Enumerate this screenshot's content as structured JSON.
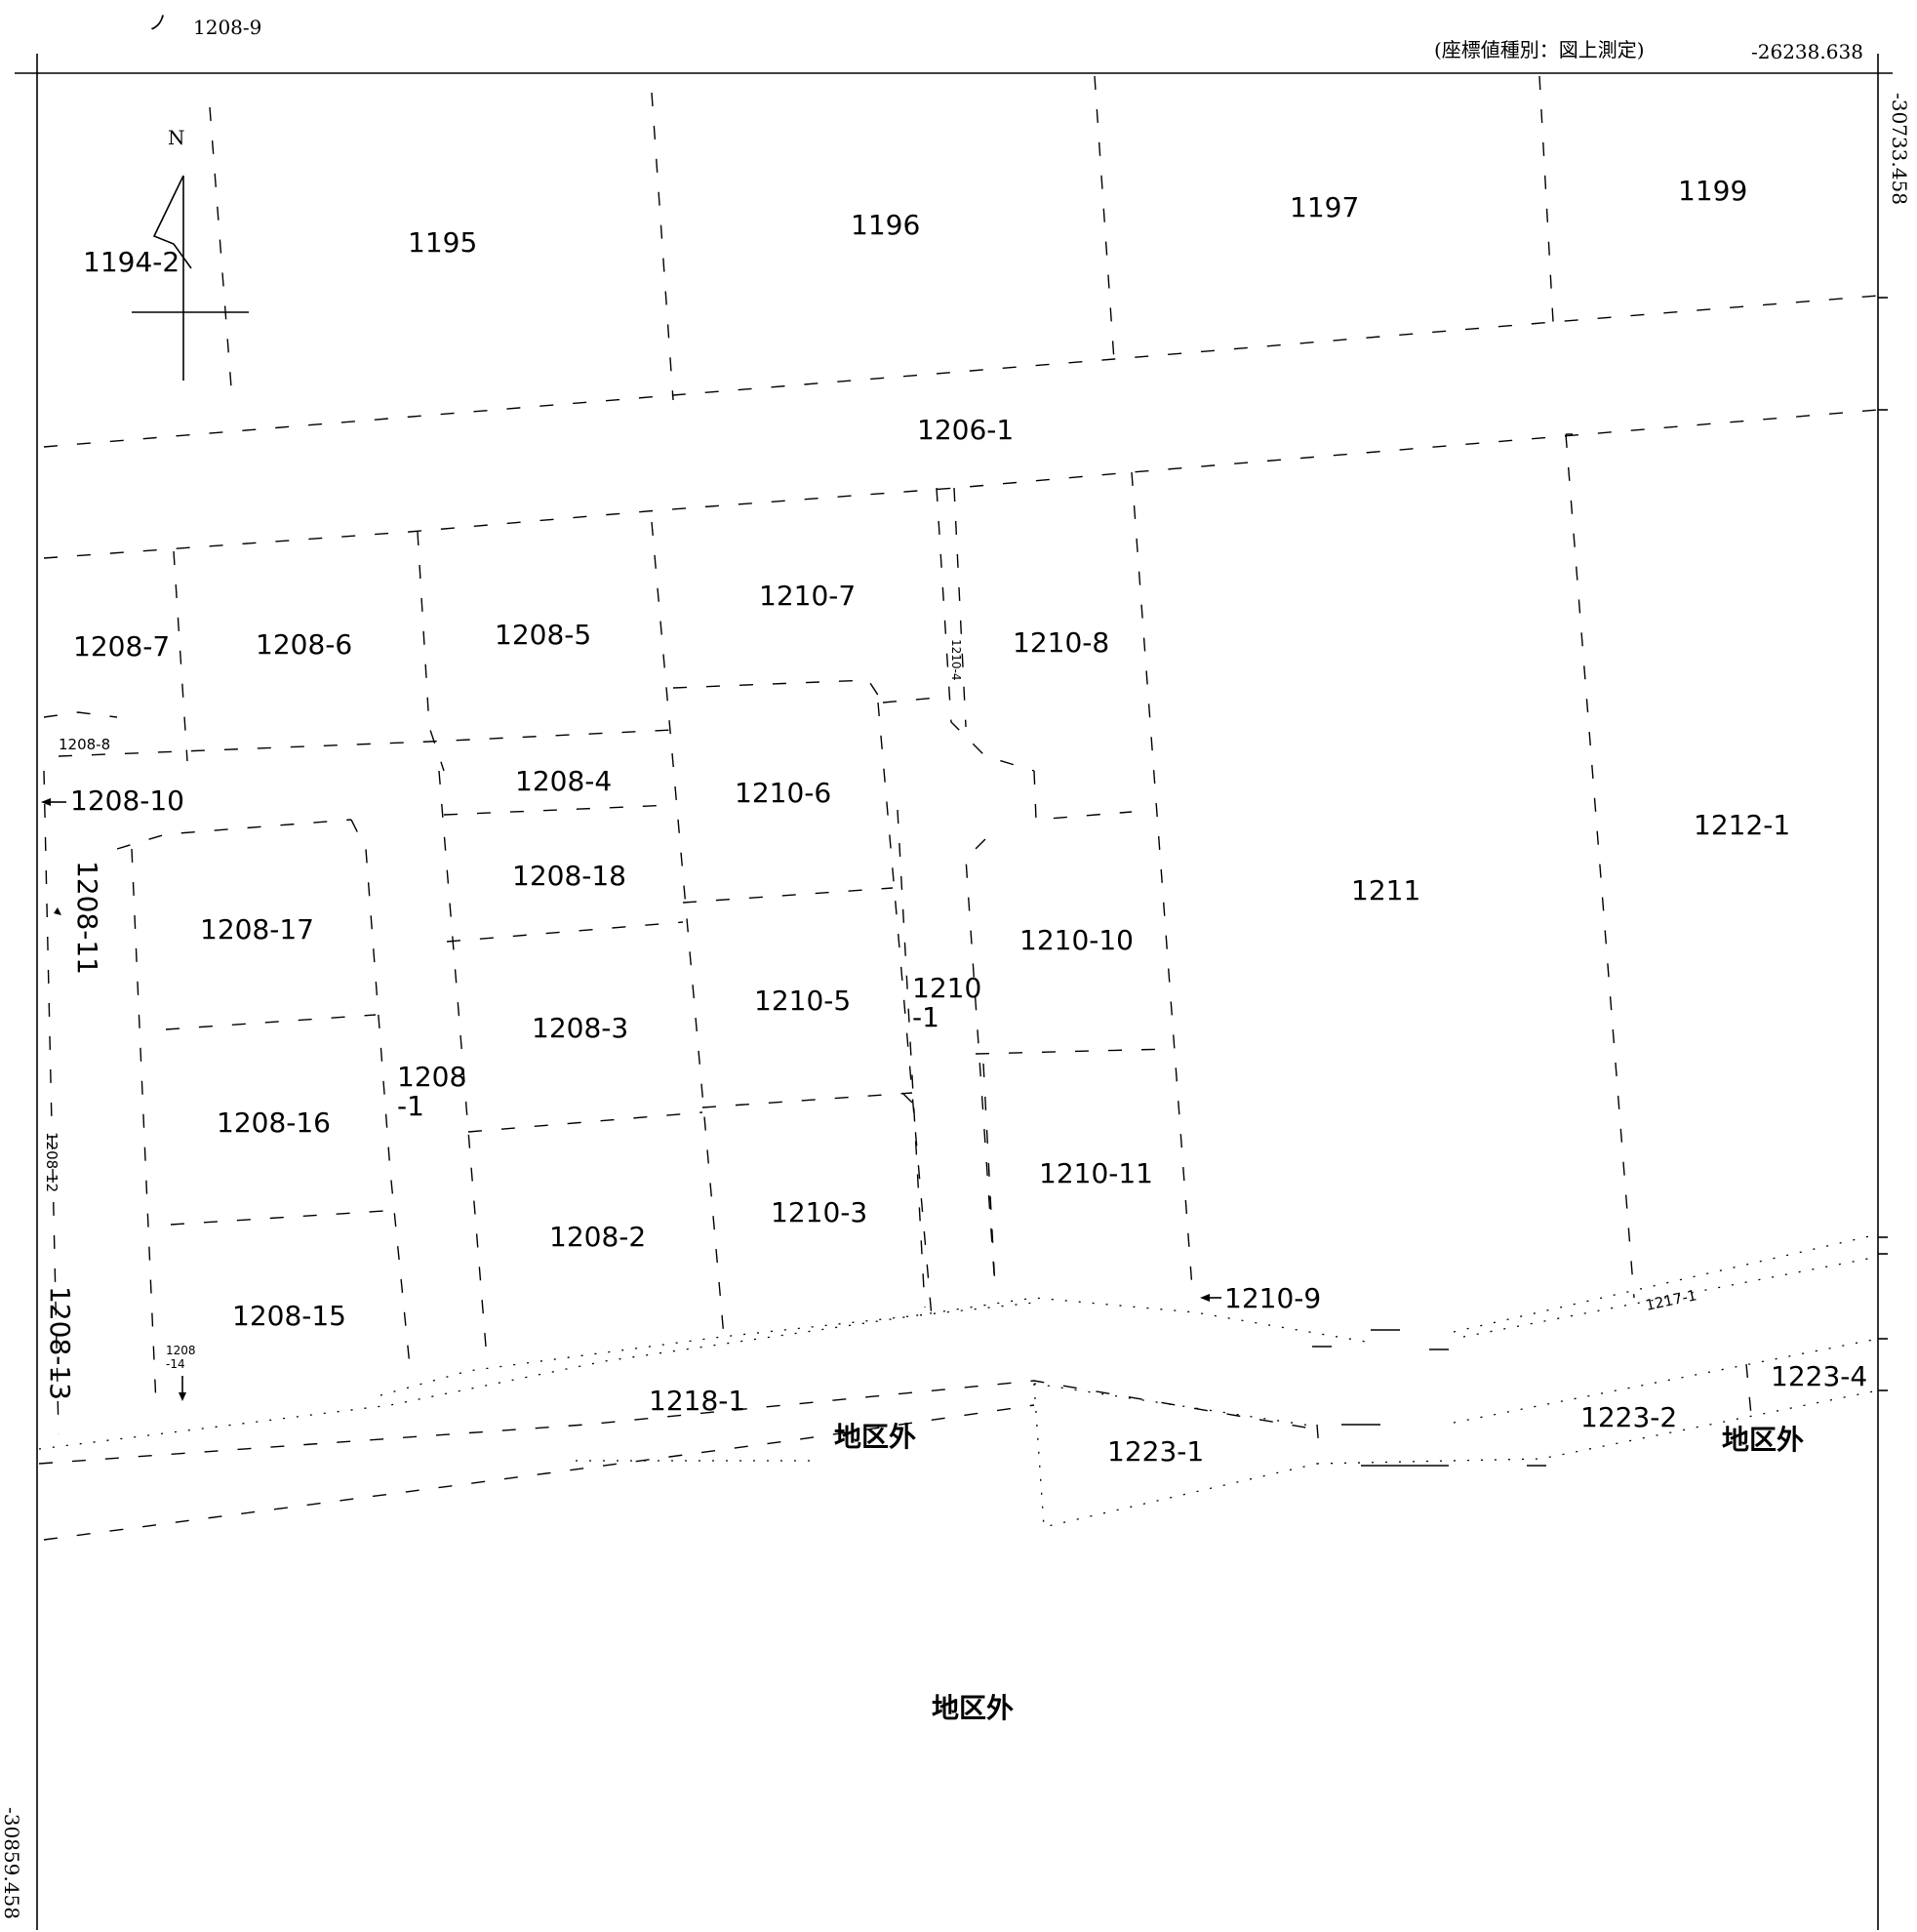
{
  "header": {
    "top_label": "1208-9",
    "coordinate_note": "(座標値種別：図上測定)",
    "coord_top": "-26238.638",
    "coord_right": "-30733.458",
    "coord_bottom": "-30859.458"
  },
  "compass": {
    "north": "N"
  },
  "parcels": [
    {
      "id": "1194-2",
      "label": "1194-2"
    },
    {
      "id": "1195",
      "label": "1195"
    },
    {
      "id": "1196",
      "label": "1196"
    },
    {
      "id": "1197",
      "label": "1197"
    },
    {
      "id": "1199",
      "label": "1199"
    },
    {
      "id": "1206-1",
      "label": "1206-1"
    },
    {
      "id": "1208-7",
      "label": "1208-7"
    },
    {
      "id": "1208-6",
      "label": "1208-6"
    },
    {
      "id": "1208-5",
      "label": "1208-5"
    },
    {
      "id": "1210-7",
      "label": "1210-7"
    },
    {
      "id": "1210-4",
      "label": "1210-4"
    },
    {
      "id": "1210-8",
      "label": "1210-8"
    },
    {
      "id": "1208-8",
      "label": "1208-8"
    },
    {
      "id": "1208-10",
      "label": "1208-10"
    },
    {
      "id": "1208-4",
      "label": "1208-4"
    },
    {
      "id": "1210-6",
      "label": "1210-6"
    },
    {
      "id": "1212-1",
      "label": "1212-1"
    },
    {
      "id": "1208-11",
      "label": "1208-11"
    },
    {
      "id": "1208-18",
      "label": "1208-18"
    },
    {
      "id": "1211",
      "label": "1211"
    },
    {
      "id": "1208-17",
      "label": "1208-17"
    },
    {
      "id": "1210-10",
      "label": "1210-10"
    },
    {
      "id": "1210-1a",
      "label": "1210"
    },
    {
      "id": "1210-1b",
      "label": "-1"
    },
    {
      "id": "1210-5",
      "label": "1210-5"
    },
    {
      "id": "1208-3",
      "label": "1208-3"
    },
    {
      "id": "1208-1a",
      "label": "1208"
    },
    {
      "id": "1208-1b",
      "label": "-1"
    },
    {
      "id": "1208-16",
      "label": "1208-16"
    },
    {
      "id": "1208-12",
      "label": "1208 12"
    },
    {
      "id": "1210-11",
      "label": "1210-11"
    },
    {
      "id": "1210-3",
      "label": "1210-3"
    },
    {
      "id": "1208-2",
      "label": "1208-2"
    },
    {
      "id": "1208-13",
      "label": "1208-13"
    },
    {
      "id": "1208-15",
      "label": "1208-15"
    },
    {
      "id": "1210-9",
      "label": "1210-9"
    },
    {
      "id": "1217-1",
      "label": "1217-1"
    },
    {
      "id": "1208-14a",
      "label": "1208"
    },
    {
      "id": "1208-14b",
      "label": "-14"
    },
    {
      "id": "1223-4",
      "label": "1223-4"
    },
    {
      "id": "1218-1",
      "label": "1218-1"
    },
    {
      "id": "1223-2",
      "label": "1223-2"
    },
    {
      "id": "1223-1",
      "label": "1223-1"
    }
  ],
  "outside_labels": {
    "a": "地区外",
    "b": "地区外",
    "c": "地区外"
  }
}
